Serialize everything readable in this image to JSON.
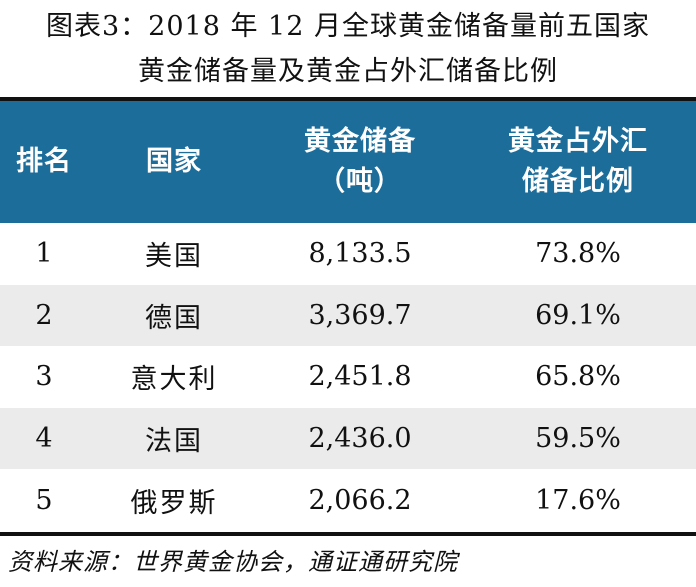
{
  "title": {
    "line1": "图表3：2018 年 12 月全球黄金储备量前五国家",
    "line2": "黄金储备量及黄金占外汇储备比例"
  },
  "table": {
    "headers": {
      "rank": "排名",
      "country": "国家",
      "reserve_line1": "黄金储备",
      "reserve_line2": "（吨）",
      "ratio_line1": "黄金占外汇",
      "ratio_line2": "储备比例"
    },
    "rows": [
      {
        "rank": "1",
        "country": "美国",
        "reserve": "8,133.5",
        "ratio": "73.8%"
      },
      {
        "rank": "2",
        "country": "德国",
        "reserve": "3,369.7",
        "ratio": "69.1%"
      },
      {
        "rank": "3",
        "country": "意大利",
        "reserve": "2,451.8",
        "ratio": "65.8%"
      },
      {
        "rank": "4",
        "country": "法国",
        "reserve": "2,436.0",
        "ratio": "59.5%"
      },
      {
        "rank": "5",
        "country": "俄罗斯",
        "reserve": "2,066.2",
        "ratio": "17.6%"
      }
    ]
  },
  "source": "资料来源：世界黄金协会，通证通研究院",
  "colors": {
    "header_bg": "#1d6d9b",
    "header_text": "#ffffff",
    "shaded_row": "#ebebeb",
    "rule": "#111111"
  }
}
